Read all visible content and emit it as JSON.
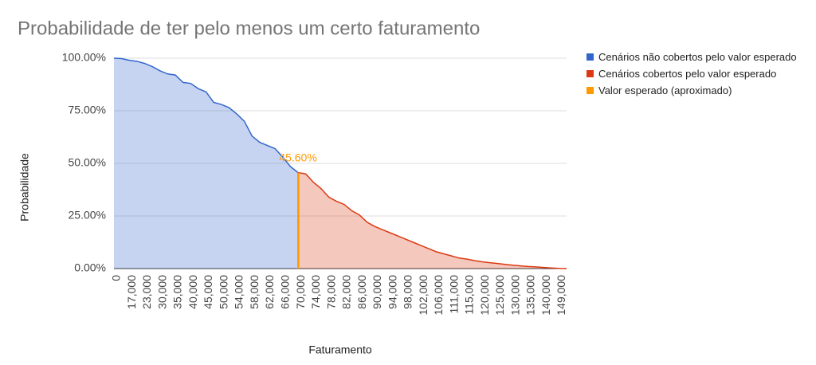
{
  "chart_data": {
    "type": "area",
    "title": "Probabilidade de ter pelo menos um certo faturamento",
    "x_label": "Faturamento",
    "y_label": "Probabilidade",
    "categories": [
      "0",
      null,
      "17,000",
      null,
      "23,000",
      null,
      "30,000",
      null,
      "35,000",
      null,
      "40,000",
      null,
      "45,000",
      null,
      "50,000",
      null,
      "54,000",
      null,
      "58,000",
      null,
      "62,000",
      null,
      "66,000",
      null,
      "70,000",
      null,
      "74,000",
      null,
      "78,000",
      null,
      "82,000",
      null,
      "86,000",
      null,
      "90,000",
      null,
      "94,000",
      null,
      "98,000",
      null,
      "102,000",
      null,
      "106,000",
      null,
      "111,000",
      null,
      "115,000",
      null,
      "120,000",
      null,
      "125,000",
      null,
      "130,000",
      null,
      "135,000",
      null,
      "140,000",
      null,
      "149,000",
      null
    ],
    "series": [
      {
        "name": "Cenários não cobertos pelo valor esperado",
        "color": "#3366cc",
        "kind": "area",
        "values": [
          100,
          99.8,
          99,
          98.5,
          97.5,
          96,
          94,
          92.5,
          92,
          88.5,
          88,
          85.5,
          84,
          79,
          78,
          76.5,
          73.5,
          70,
          63,
          60,
          58.5,
          57,
          53,
          48.5,
          45.6,
          null,
          null,
          null,
          null,
          null,
          null,
          null,
          null,
          null,
          null,
          null,
          null,
          null,
          null,
          null,
          null,
          null,
          null,
          null,
          null,
          null,
          null,
          null,
          null,
          null,
          null,
          null,
          null,
          null,
          null,
          null,
          null,
          null,
          null,
          null
        ]
      },
      {
        "name": "Cenários cobertos pelo valor esperado",
        "color": "#dc3912",
        "kind": "area",
        "values": [
          null,
          null,
          null,
          null,
          null,
          null,
          null,
          null,
          null,
          null,
          null,
          null,
          null,
          null,
          null,
          null,
          null,
          null,
          null,
          null,
          null,
          null,
          null,
          null,
          45.6,
          45,
          41,
          38,
          34,
          32,
          30.5,
          27.5,
          25.5,
          22,
          20,
          18.5,
          17,
          15.5,
          14,
          12.5,
          11,
          9.5,
          8,
          7,
          6,
          5,
          4.5,
          3.8,
          3.2,
          2.8,
          2.4,
          2,
          1.6,
          1.3,
          1,
          0.8,
          0.5,
          0.3,
          0.1,
          0
        ]
      },
      {
        "name": "Valor esperado (aproximado)",
        "color": "#ff9900",
        "kind": "bar",
        "values": [
          null,
          null,
          null,
          null,
          null,
          null,
          null,
          null,
          null,
          null,
          null,
          null,
          null,
          null,
          null,
          null,
          null,
          null,
          null,
          null,
          null,
          null,
          null,
          null,
          45.6,
          null,
          null,
          null,
          null,
          null,
          null,
          null,
          null,
          null,
          null,
          null,
          null,
          null,
          null,
          null,
          null,
          null,
          null,
          null,
          null,
          null,
          null,
          null,
          null,
          null,
          null,
          null,
          null,
          null,
          null,
          null,
          null,
          null,
          null,
          null
        ],
        "value_labels": [
          null,
          null,
          null,
          null,
          null,
          null,
          null,
          null,
          null,
          null,
          null,
          null,
          null,
          null,
          null,
          null,
          null,
          null,
          null,
          null,
          null,
          null,
          null,
          null,
          "45.60%",
          null,
          null,
          null,
          null,
          null,
          null,
          null,
          null,
          null,
          null,
          null,
          null,
          null,
          null,
          null,
          null,
          null,
          null,
          null,
          null,
          null,
          null,
          null,
          null,
          null,
          null,
          null,
          null,
          null,
          null,
          null,
          null,
          null,
          null,
          null
        ]
      }
    ],
    "ylim": [
      0,
      100
    ],
    "yticks": [
      {
        "value": 0,
        "label": "0.00%"
      },
      {
        "value": 25,
        "label": "25.00%"
      },
      {
        "value": 50,
        "label": "50.00%"
      },
      {
        "value": 75,
        "label": "75.00%"
      },
      {
        "value": 100,
        "label": "100.00%"
      }
    ],
    "grid": true
  }
}
